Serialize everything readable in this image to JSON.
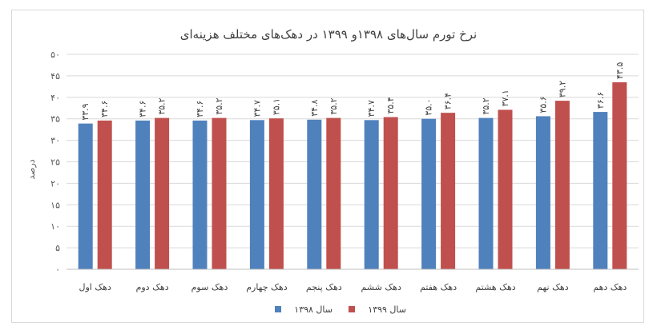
{
  "chart_data": {
    "type": "bar",
    "title": "نرخ تورم سال‌های ۱۳۹۸و ۱۳۹۹ در دهک‌های مختلف هزینه‌ای",
    "ylabel": "درصد",
    "xlabel": "",
    "ylim": [
      0,
      50
    ],
    "yticks": [
      0,
      5,
      10,
      15,
      20,
      25,
      30,
      35,
      40,
      45,
      50
    ],
    "ytick_labels": [
      "۰",
      "۵",
      "۱۰",
      "۱۵",
      "۲۰",
      "۲۵",
      "۳۰",
      "۳۵",
      "۴۰",
      "۴۵",
      "۵۰"
    ],
    "grid": true,
    "legend_position": "bottom",
    "categories": [
      "دهک اول",
      "دهک دوم",
      "دهک سوم",
      "دهک چهارم",
      "دهک پنجم",
      "دهک ششم",
      "دهک هفتم",
      "دهک هشتم",
      "دهک نهم",
      "دهک دهم"
    ],
    "series": [
      {
        "name": "سال ۱۳۹۸",
        "color": "#4f81bd",
        "values": [
          33.9,
          34.6,
          34.6,
          34.7,
          34.8,
          34.7,
          35.0,
          35.2,
          35.6,
          36.6
        ],
        "labels": [
          "۳۳.۹",
          "۳۴.۶",
          "۳۴.۶",
          "۳۴.۷",
          "۳۴.۸",
          "۳۴.۷",
          "۳۵.۰",
          "۳۵.۲",
          "۳۵.۶",
          "۳۶.۶"
        ]
      },
      {
        "name": "سال ۱۳۹۹",
        "color": "#c0504d",
        "values": [
          34.6,
          35.2,
          35.2,
          35.1,
          35.2,
          35.4,
          36.4,
          37.1,
          39.2,
          43.5
        ],
        "labels": [
          "۳۴.۶",
          "۳۵.۲",
          "۳۵.۲",
          "۳۵.۱",
          "۳۵.۲",
          "۳۵.۴",
          "۳۶.۴",
          "۳۷.۱",
          "۳۹.۲",
          "۴۳.۵"
        ]
      }
    ]
  }
}
